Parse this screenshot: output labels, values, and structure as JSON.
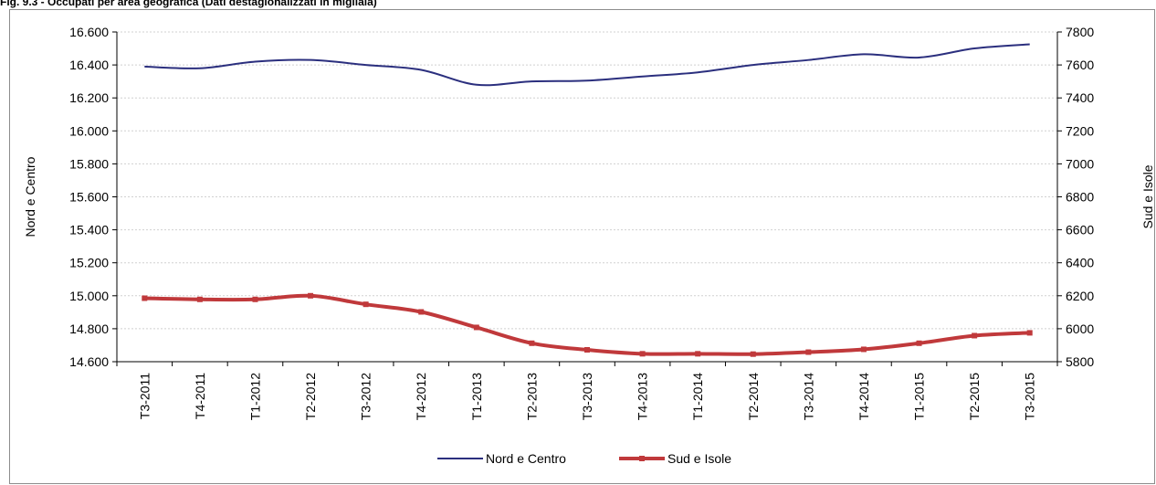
{
  "figure_title": "Fig. 9.3 - Occupati per area geografica (Dati destagionalizzati in migliaia)",
  "colors": {
    "nord": "#2b2f7e",
    "sud": "#c0393b",
    "grid": "#d0d0d0",
    "axis": "#000000"
  },
  "chart_data": {
    "type": "line",
    "title": "",
    "xlabel": "",
    "ylabel_left": "Nord e Centro",
    "ylabel_right": "Sud e Isole",
    "categories": [
      "T3-2011",
      "T4-2011",
      "T1-2012",
      "T2-2012",
      "T3-2012",
      "T4-2012",
      "T1-2013",
      "T2-2013",
      "T3-2013",
      "T4-2013",
      "T1-2014",
      "T2-2014",
      "T3-2014",
      "T4-2014",
      "T1-2015",
      "T2-2015",
      "T3-2015"
    ],
    "ylim_left": [
      14600,
      16600
    ],
    "ylim_right": [
      5800,
      7800
    ],
    "yticks_left": [
      "16.600",
      "16.400",
      "16.200",
      "16.000",
      "15.800",
      "15.600",
      "15.400",
      "15.200",
      "15.000",
      "14.800",
      "14.600"
    ],
    "yticks_right": [
      "7800",
      "7600",
      "7400",
      "7200",
      "7000",
      "6800",
      "6600",
      "6400",
      "6200",
      "6000",
      "5800"
    ],
    "grid": true,
    "legend_position": "bottom",
    "series": [
      {
        "name": "Nord e Centro",
        "axis": "left",
        "marker": false,
        "values": [
          16390,
          16380,
          16420,
          16430,
          16400,
          16370,
          16280,
          16300,
          16305,
          16330,
          16355,
          16400,
          16430,
          16465,
          16445,
          16500,
          16525
        ]
      },
      {
        "name": "Sud e Isole",
        "axis": "right",
        "marker": true,
        "values": [
          6185,
          6178,
          6178,
          6200,
          6148,
          6102,
          6008,
          5912,
          5872,
          5848,
          5848,
          5846,
          5858,
          5875,
          5912,
          5958,
          5975
        ]
      }
    ]
  }
}
